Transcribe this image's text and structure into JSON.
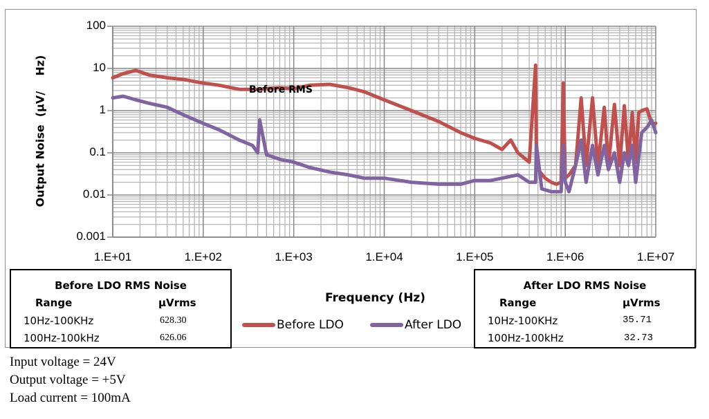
{
  "chart_data": {
    "type": "line",
    "title": "",
    "xlabel": "Frequency (Hz)",
    "ylabel": "Output Noise  (µV/    Hz)",
    "xscale": "log",
    "yscale": "log",
    "xlim": [
      10,
      10000000
    ],
    "ylim": [
      0.001,
      100
    ],
    "grid": true,
    "legend_position": "bottom-center",
    "x_tick_labels": [
      "1.E+01",
      "1.E+02",
      "1.E+03",
      "1.E+04",
      "1.E+05",
      "1.E+06",
      "1.E+07"
    ],
    "y_tick_labels": [
      "100",
      "10",
      "1",
      "0.1",
      "0.01",
      "0.001"
    ],
    "annotation": "Before RMS",
    "series": [
      {
        "name": "Before LDO",
        "color": "#c0504d",
        "x": [
          10,
          13,
          18,
          25,
          40,
          60,
          100,
          150,
          250,
          400,
          700,
          1000,
          1500,
          2500,
          4000,
          6000,
          10000,
          20000,
          40000,
          70000,
          100000,
          150000,
          200000,
          250000,
          300000,
          400000,
          470000,
          480000,
          500000,
          600000,
          700000,
          800000,
          900000,
          950000,
          1000000,
          1100000,
          1300000,
          1500000,
          1700000,
          2000000,
          2300000,
          2700000,
          3000000,
          3500000,
          4000000,
          4500000,
          5000000,
          5500000,
          6000000,
          6500000,
          7000000,
          8000000,
          9000000,
          10000000
        ],
        "y": [
          6,
          7.5,
          9,
          7,
          6,
          5.5,
          4.5,
          4,
          3.2,
          3.2,
          3.5,
          3.3,
          4,
          4.2,
          3.5,
          2.8,
          1.8,
          1,
          0.55,
          0.3,
          0.22,
          0.17,
          0.12,
          0.2,
          0.1,
          0.06,
          12,
          0.06,
          0.04,
          0.025,
          0.02,
          0.018,
          0.02,
          4.5,
          0.025,
          0.03,
          0.05,
          2,
          0.05,
          2,
          0.05,
          1.2,
          0.05,
          1.4,
          0.05,
          1.3,
          0.06,
          0.9,
          0.06,
          0.9,
          1,
          1.1,
          0.5,
          0.5
        ]
      },
      {
        "name": "After LDO",
        "color": "#8064a2",
        "x": [
          10,
          13,
          18,
          25,
          40,
          60,
          100,
          150,
          250,
          350,
          400,
          420,
          500,
          700,
          1000,
          1500,
          2500,
          4000,
          6000,
          10000,
          20000,
          40000,
          70000,
          100000,
          150000,
          200000,
          300000,
          400000,
          470000,
          480000,
          550000,
          700000,
          900000,
          950000,
          1000000,
          1100000,
          1300000,
          1500000,
          1700000,
          2000000,
          2300000,
          2700000,
          3000000,
          3500000,
          4000000,
          4500000,
          5000000,
          5500000,
          6000000,
          7000000,
          8000000,
          9000000,
          10000000
        ],
        "y": [
          2,
          2.2,
          1.8,
          1.5,
          1.2,
          0.8,
          0.5,
          0.35,
          0.2,
          0.15,
          0.1,
          0.6,
          0.09,
          0.07,
          0.06,
          0.045,
          0.035,
          0.03,
          0.025,
          0.025,
          0.02,
          0.018,
          0.018,
          0.022,
          0.022,
          0.025,
          0.03,
          0.02,
          0.02,
          0.15,
          0.014,
          0.012,
          0.012,
          0.15,
          0.02,
          0.012,
          0.05,
          0.2,
          0.02,
          0.15,
          0.03,
          0.15,
          0.04,
          0.1,
          0.02,
          0.1,
          0.05,
          0.15,
          0.02,
          0.3,
          0.4,
          0.6,
          0.3
        ]
      }
    ]
  },
  "before_table": {
    "title": "Before LDO RMS Noise",
    "col_range": "Range",
    "col_value": "µVrms",
    "rows": [
      {
        "range": "10Hz-100KHz",
        "value": "628.30"
      },
      {
        "range": "100Hz-100kHz",
        "value": "626.06"
      }
    ]
  },
  "after_table": {
    "title": "After LDO RMS Noise",
    "col_range": "Range",
    "col_value": "µVrms",
    "rows": [
      {
        "range": "10Hz-100KHz",
        "value": "35.71"
      },
      {
        "range": "100Hz-100kHz",
        "value": "32.73"
      }
    ]
  },
  "conditions": [
    "Input voltage = 24V",
    "Output voltage = +5V",
    "Load current = 100mA"
  ]
}
